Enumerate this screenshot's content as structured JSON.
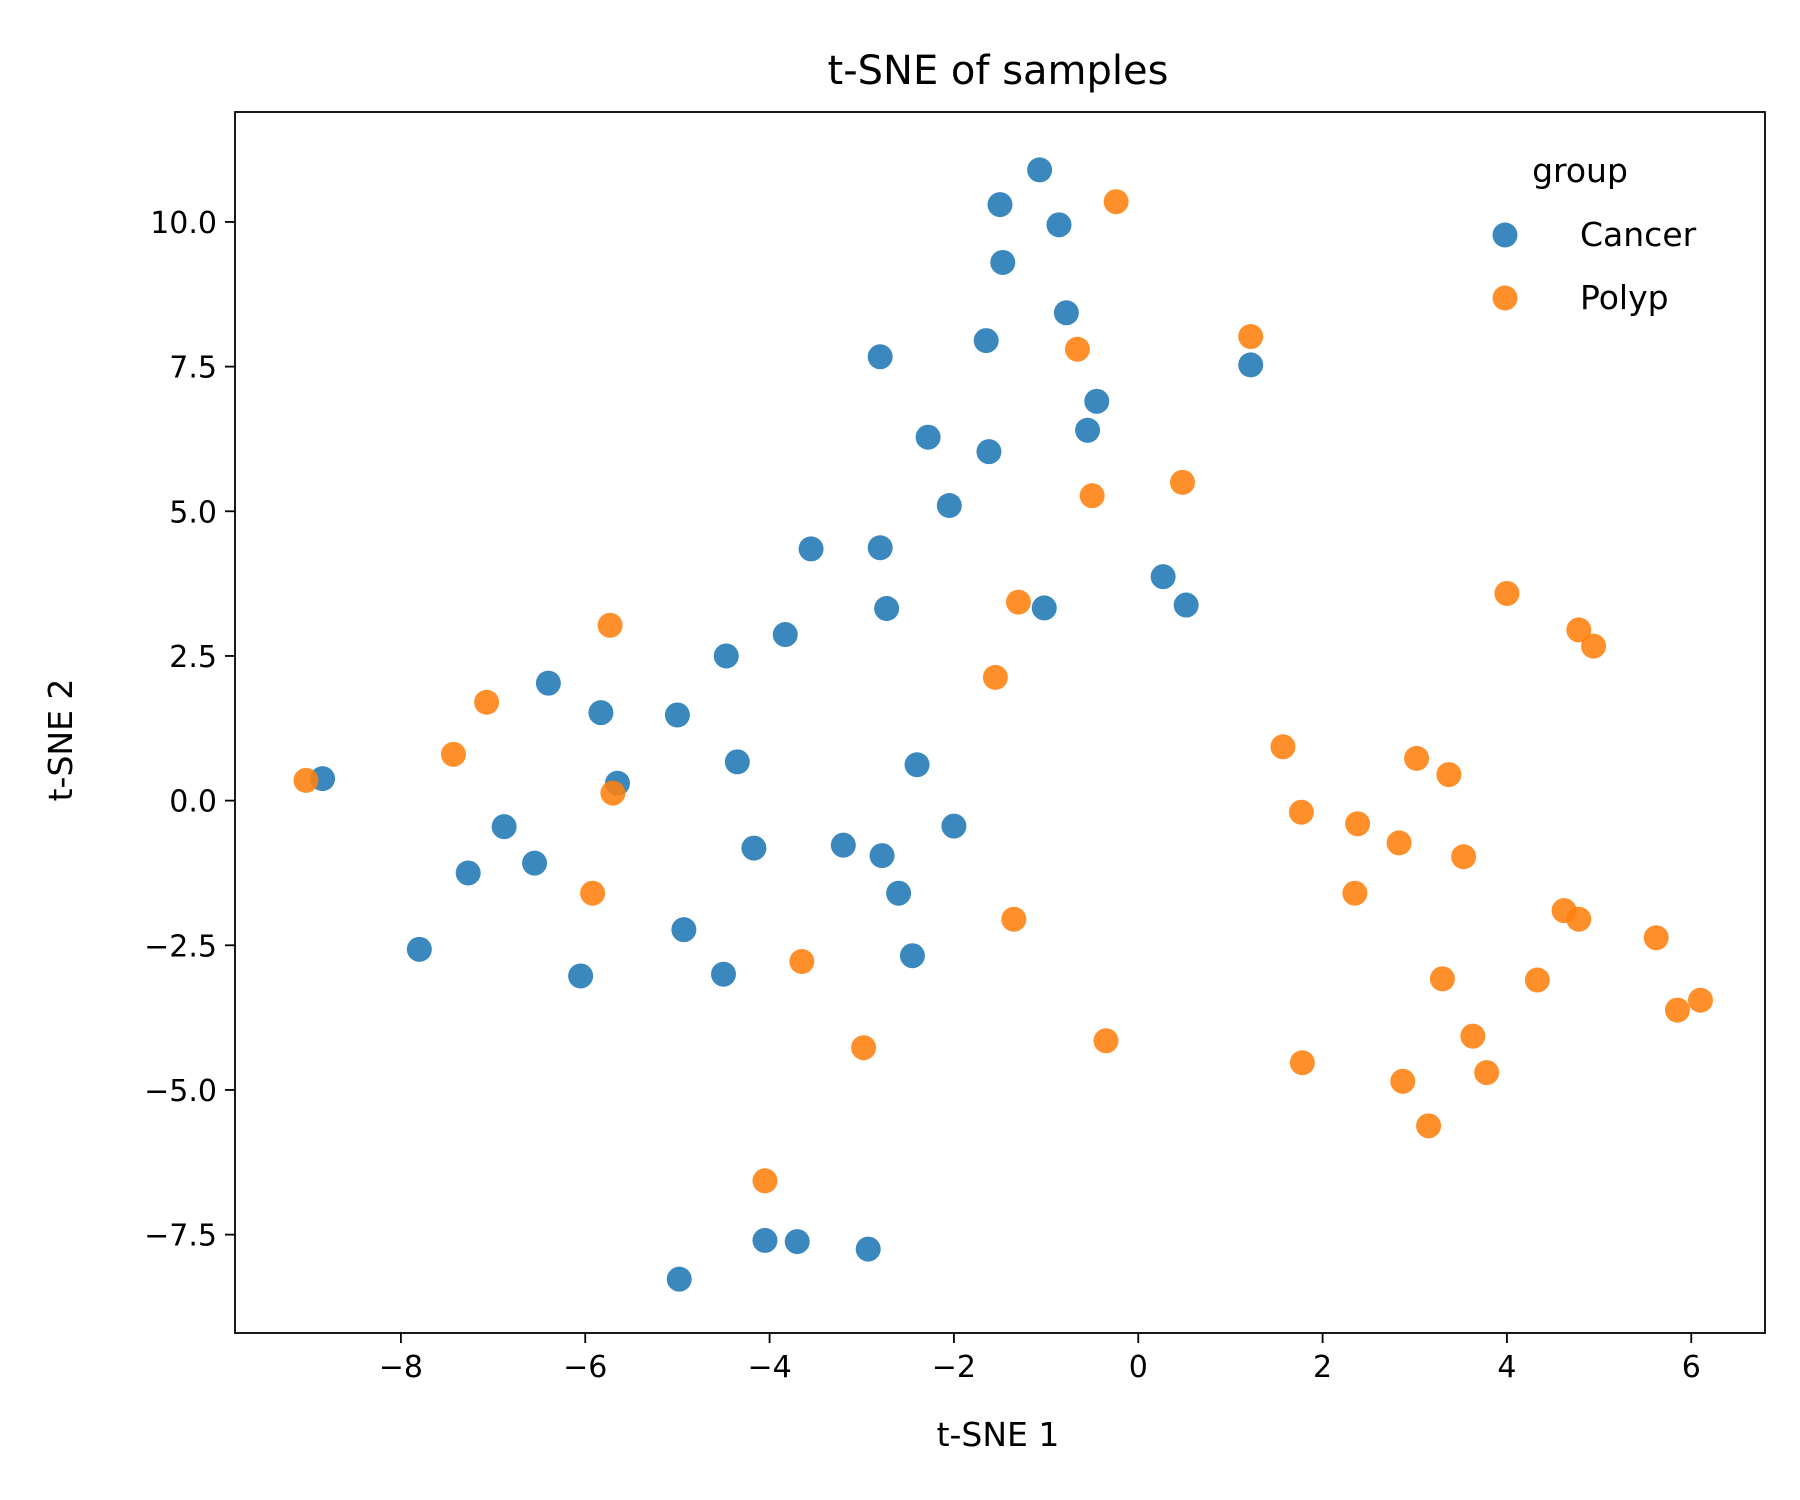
{
  "chart_data": {
    "type": "scatter",
    "title": "t-SNE of samples",
    "xlabel": "t-SNE 1",
    "ylabel": "t-SNE 2",
    "xlim": [
      -9.8,
      6.8
    ],
    "ylim": [
      -9.2,
      11.9
    ],
    "xticks": [
      -8,
      -6,
      -4,
      -2,
      0,
      2,
      4,
      6
    ],
    "xtick_labels": [
      "−8",
      "−6",
      "−4",
      "−2",
      "0",
      "2",
      "4",
      "6"
    ],
    "yticks": [
      -7.5,
      -5.0,
      -2.5,
      0.0,
      2.5,
      5.0,
      7.5,
      10.0
    ],
    "ytick_labels": [
      "−7.5",
      "−5.0",
      "−2.5",
      "0.0",
      "2.5",
      "5.0",
      "7.5",
      "10.0"
    ],
    "grid": false,
    "legend": {
      "title": "group",
      "placement": "top-right"
    },
    "series": [
      {
        "name": "Cancer",
        "color": "#1f77b4",
        "points": [
          [
            -1.07,
            10.9
          ],
          [
            -1.5,
            10.3
          ],
          [
            -0.86,
            9.95
          ],
          [
            -1.47,
            9.3
          ],
          [
            -0.78,
            8.43
          ],
          [
            -1.65,
            7.95
          ],
          [
            -2.8,
            7.67
          ],
          [
            1.22,
            7.53
          ],
          [
            -0.45,
            6.9
          ],
          [
            -0.55,
            6.4
          ],
          [
            -2.28,
            6.28
          ],
          [
            -1.62,
            6.03
          ],
          [
            -2.05,
            5.1
          ],
          [
            -3.55,
            4.35
          ],
          [
            -2.8,
            4.37
          ],
          [
            0.27,
            3.87
          ],
          [
            0.52,
            3.38
          ],
          [
            -1.02,
            3.33
          ],
          [
            -2.73,
            3.32
          ],
          [
            -3.83,
            2.87
          ],
          [
            -4.47,
            2.5
          ],
          [
            -6.4,
            2.03
          ],
          [
            -5.83,
            1.52
          ],
          [
            -5.0,
            1.48
          ],
          [
            -4.35,
            0.67
          ],
          [
            -2.4,
            0.62
          ],
          [
            -8.85,
            0.38
          ],
          [
            -5.65,
            0.3
          ],
          [
            -6.88,
            -0.45
          ],
          [
            -2.0,
            -0.44
          ],
          [
            -6.55,
            -1.08
          ],
          [
            -4.17,
            -0.82
          ],
          [
            -3.2,
            -0.77
          ],
          [
            -2.78,
            -0.95
          ],
          [
            -7.27,
            -1.25
          ],
          [
            -2.6,
            -1.6
          ],
          [
            -4.93,
            -2.23
          ],
          [
            -7.8,
            -2.57
          ],
          [
            -2.45,
            -2.68
          ],
          [
            -4.5,
            -3.0
          ],
          [
            -6.05,
            -3.03
          ],
          [
            -4.05,
            -7.6
          ],
          [
            -3.7,
            -7.62
          ],
          [
            -2.93,
            -7.75
          ],
          [
            -4.98,
            -8.27
          ]
        ]
      },
      {
        "name": "Polyp",
        "color": "#ff7f0e",
        "points": [
          [
            -0.24,
            10.35
          ],
          [
            1.22,
            8.02
          ],
          [
            -0.66,
            7.8
          ],
          [
            0.48,
            5.5
          ],
          [
            -0.5,
            5.27
          ],
          [
            -1.3,
            3.43
          ],
          [
            4.0,
            3.58
          ],
          [
            -5.73,
            3.03
          ],
          [
            4.78,
            2.95
          ],
          [
            4.94,
            2.67
          ],
          [
            -1.55,
            2.13
          ],
          [
            -7.07,
            1.7
          ],
          [
            1.57,
            0.93
          ],
          [
            -7.43,
            0.8
          ],
          [
            3.02,
            0.73
          ],
          [
            3.37,
            0.45
          ],
          [
            -9.03,
            0.35
          ],
          [
            -5.7,
            0.13
          ],
          [
            1.77,
            -0.2
          ],
          [
            2.38,
            -0.4
          ],
          [
            2.83,
            -0.73
          ],
          [
            3.53,
            -0.97
          ],
          [
            -5.92,
            -1.6
          ],
          [
            2.35,
            -1.6
          ],
          [
            4.62,
            -1.9
          ],
          [
            4.78,
            -2.05
          ],
          [
            -1.35,
            -2.05
          ],
          [
            5.62,
            -2.37
          ],
          [
            -3.65,
            -2.78
          ],
          [
            3.3,
            -3.08
          ],
          [
            4.33,
            -3.1
          ],
          [
            6.1,
            -3.45
          ],
          [
            5.85,
            -3.62
          ],
          [
            3.63,
            -4.07
          ],
          [
            -0.35,
            -4.15
          ],
          [
            -2.98,
            -4.27
          ],
          [
            1.78,
            -4.53
          ],
          [
            3.78,
            -4.7
          ],
          [
            2.87,
            -4.85
          ],
          [
            3.15,
            -5.62
          ],
          [
            -4.05,
            -6.57
          ]
        ]
      }
    ]
  }
}
